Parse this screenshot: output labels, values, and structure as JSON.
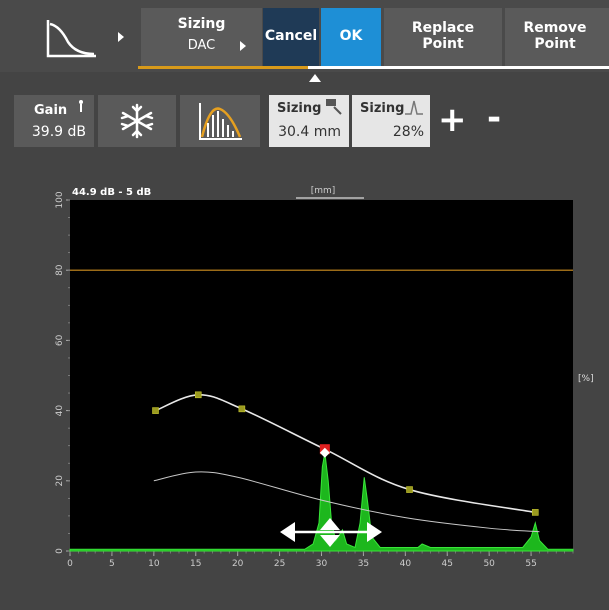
{
  "toolbar": {
    "curve_icon": "dac-curve-icon",
    "sizing_title": "Sizing",
    "sizing_value": "DAC",
    "cancel": "Cancel",
    "ok": "OK",
    "replace_l1": "Replace",
    "replace_l2": "Point",
    "remove_l1": "Remove",
    "remove_l2": "Point"
  },
  "controls": {
    "gain_label": "Gain",
    "gain_value": "39.9 dB",
    "freeze_icon": "snowflake-icon",
    "peak_icon": "peak-memory-icon",
    "sizing1_label": "Sizing",
    "sizing1_value": "30.4 mm",
    "sizing2_label": "Sizing",
    "sizing2_value": "28%",
    "plus": "+",
    "minus": "-"
  },
  "chart": {
    "header_left": "44.9 dB - 5 dB",
    "header_center": "[mm]",
    "right_unit": "[%]",
    "y_ticks": [
      "0",
      "20",
      "40",
      "60",
      "80",
      "100"
    ],
    "x_ticks": [
      "0",
      "5",
      "10",
      "15",
      "20",
      "25",
      "30",
      "35",
      "40",
      "45",
      "50",
      "55"
    ]
  },
  "colors": {
    "accent_blue": "#1e8fd6",
    "cancel_blue": "#1f3a56",
    "orange": "#d89a1a",
    "signal_green": "#22cc22",
    "point_yellow": "#9a9a20",
    "selected_red": "#e02020"
  },
  "chart_data": {
    "type": "line",
    "xlim": [
      0,
      60
    ],
    "ylim": [
      0,
      100
    ],
    "gate_level": 80,
    "dac_points": [
      {
        "x": 10.2,
        "y": 40
      },
      {
        "x": 15.3,
        "y": 44.5
      },
      {
        "x": 20.5,
        "y": 40.5
      },
      {
        "x": 30.4,
        "y": 29
      },
      {
        "x": 40.5,
        "y": 17.5
      },
      {
        "x": 55.5,
        "y": 11
      }
    ],
    "selected_point": {
      "x": 30.4,
      "y": 28
    },
    "lower_curve": [
      {
        "x": 10,
        "y": 20
      },
      {
        "x": 15,
        "y": 22.5
      },
      {
        "x": 20,
        "y": 21
      },
      {
        "x": 30,
        "y": 14.5
      },
      {
        "x": 40,
        "y": 9.5
      },
      {
        "x": 50,
        "y": 6.5
      },
      {
        "x": 56,
        "y": 5.5
      }
    ],
    "signal": [
      {
        "x": 0,
        "y": 0.5
      },
      {
        "x": 28,
        "y": 0.5
      },
      {
        "x": 29,
        "y": 2
      },
      {
        "x": 29.7,
        "y": 8
      },
      {
        "x": 30.1,
        "y": 24
      },
      {
        "x": 30.4,
        "y": 28
      },
      {
        "x": 30.8,
        "y": 20
      },
      {
        "x": 31.2,
        "y": 8
      },
      {
        "x": 31.7,
        "y": 3
      },
      {
        "x": 32.5,
        "y": 6
      },
      {
        "x": 33,
        "y": 2
      },
      {
        "x": 34,
        "y": 1
      },
      {
        "x": 34.6,
        "y": 8
      },
      {
        "x": 35.1,
        "y": 21
      },
      {
        "x": 35.5,
        "y": 14
      },
      {
        "x": 36,
        "y": 4
      },
      {
        "x": 37,
        "y": 1
      },
      {
        "x": 41.5,
        "y": 1
      },
      {
        "x": 42,
        "y": 2
      },
      {
        "x": 43,
        "y": 1
      },
      {
        "x": 54,
        "y": 1
      },
      {
        "x": 55,
        "y": 4
      },
      {
        "x": 55.5,
        "y": 8
      },
      {
        "x": 56,
        "y": 3
      },
      {
        "x": 57,
        "y": 0.5
      },
      {
        "x": 60,
        "y": 0.5
      }
    ]
  }
}
